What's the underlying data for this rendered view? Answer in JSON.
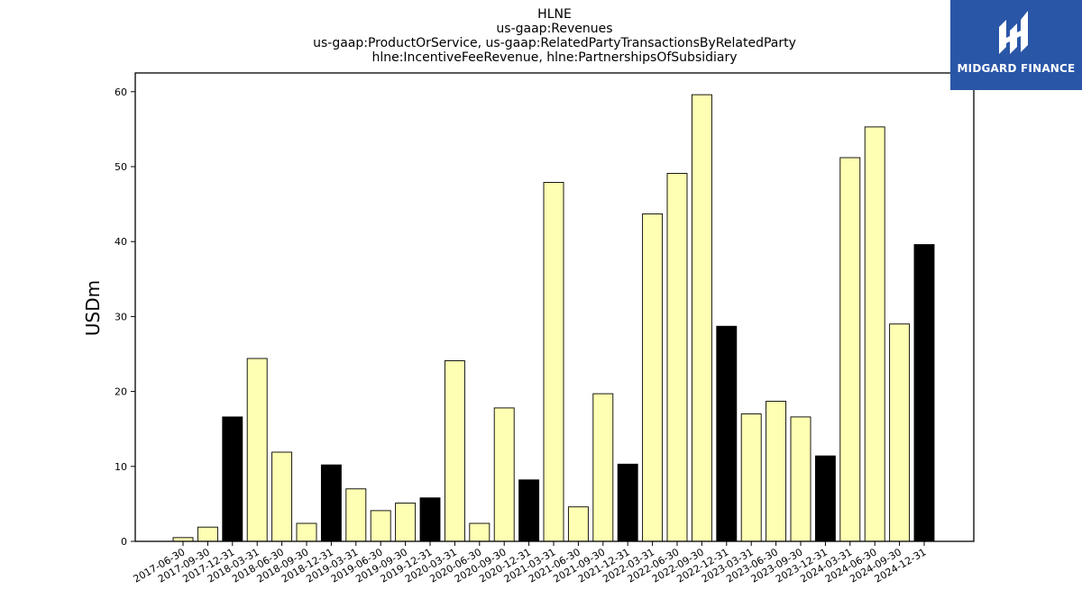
{
  "chart_data": {
    "type": "bar",
    "title": [
      "HLNE",
      "us-gaap:Revenues",
      "us-gaap:ProductOrService, us-gaap:RelatedPartyTransactionsByRelatedParty",
      "hlne:IncentiveFeeRevenue, hlne:PartnershipsOfSubsidiary"
    ],
    "ylabel": "USDm",
    "xlabel": "",
    "ylim": [
      0,
      62.5
    ],
    "yticks": [
      0,
      10,
      20,
      30,
      40,
      50,
      60
    ],
    "grid": false,
    "categories": [
      "2017-06-30",
      "2017-09-30",
      "2017-12-31",
      "2018-03-31",
      "2018-06-30",
      "2018-09-30",
      "2018-12-31",
      "2019-03-31",
      "2019-06-30",
      "2019-09-30",
      "2019-12-31",
      "2020-03-31",
      "2020-06-30",
      "2020-09-30",
      "2020-12-31",
      "2021-03-31",
      "2021-06-30",
      "2021-09-30",
      "2021-12-31",
      "2022-03-31",
      "2022-06-30",
      "2022-09-30",
      "2022-12-31",
      "2023-03-31",
      "2023-06-30",
      "2023-09-30",
      "2023-12-31",
      "2024-03-31",
      "2024-06-30",
      "2024-09-30",
      "2024-12-31"
    ],
    "values": [
      0.5,
      1.9,
      16.6,
      24.4,
      11.9,
      2.4,
      10.2,
      7.0,
      4.1,
      5.1,
      5.8,
      24.1,
      2.4,
      17.8,
      8.2,
      47.9,
      4.6,
      19.7,
      10.3,
      43.7,
      49.1,
      59.6,
      28.7,
      17.0,
      18.7,
      16.6,
      11.4,
      51.2,
      55.3,
      29.0,
      39.6
    ],
    "bar_colors": [
      "#ffffb3",
      "#ffffb3",
      "#000000",
      "#ffffb3",
      "#ffffb3",
      "#ffffb3",
      "#000000",
      "#ffffb3",
      "#ffffb3",
      "#ffffb3",
      "#000000",
      "#ffffb3",
      "#ffffb3",
      "#ffffb3",
      "#000000",
      "#ffffb3",
      "#ffffb3",
      "#ffffb3",
      "#000000",
      "#ffffb3",
      "#ffffb3",
      "#ffffb3",
      "#000000",
      "#ffffb3",
      "#ffffb3",
      "#ffffb3",
      "#000000",
      "#ffffb3",
      "#ffffb3",
      "#ffffb3",
      "#000000"
    ]
  },
  "logo": {
    "text": "MIDGARD FINANCE",
    "background": "#2a56a8"
  }
}
